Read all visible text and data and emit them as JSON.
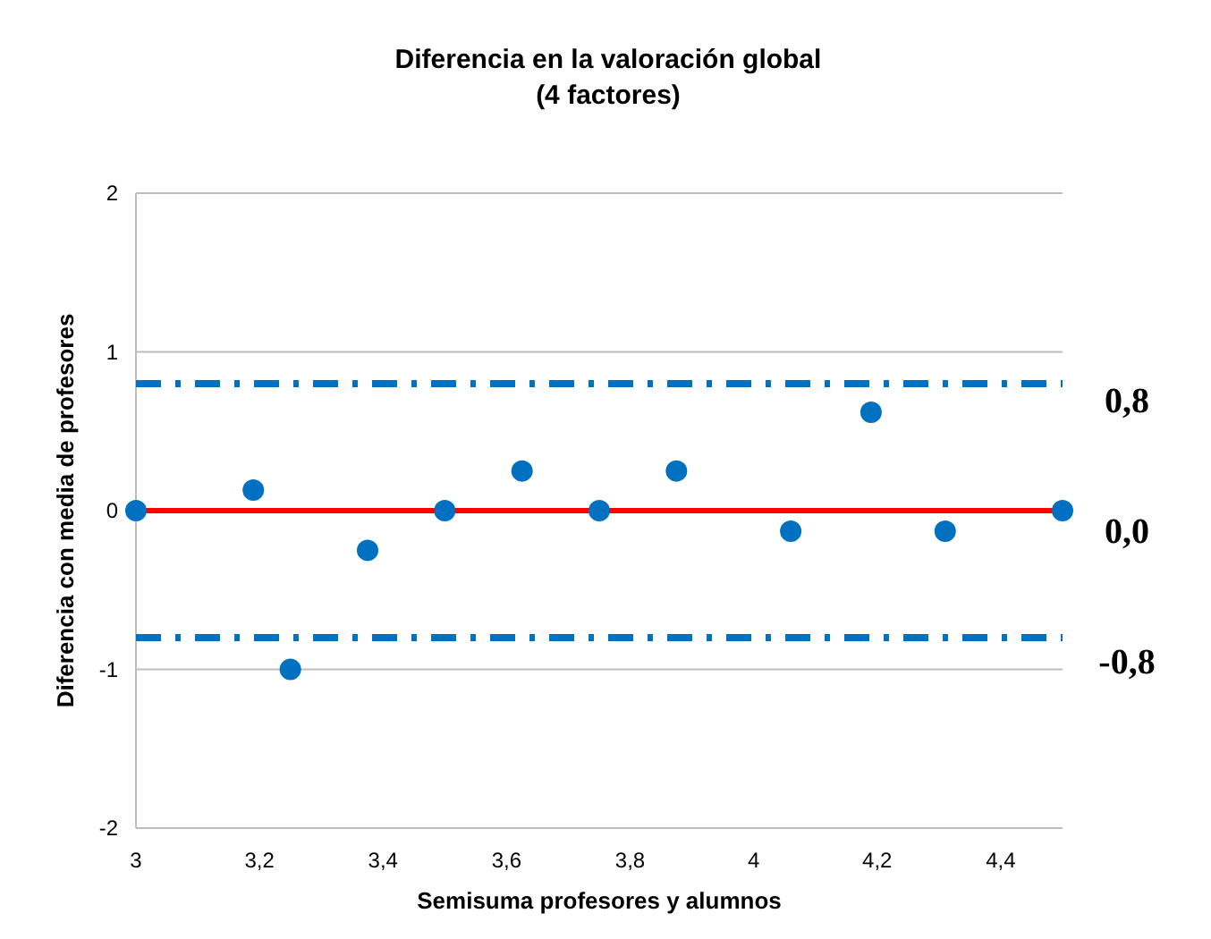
{
  "chart_data": {
    "type": "scatter",
    "title": "Diferencia en la valoración global\n(4 factores)",
    "xlabel": "Semisuma profesores y alumnos",
    "ylabel": "Diferencia con media de profesores",
    "x": [
      3,
      3.19,
      3.25,
      3.375,
      3.5,
      3.625,
      3.75,
      3.875,
      4.06,
      4.19,
      4.31,
      4.5
    ],
    "series": [
      {
        "color": "#0070c0",
        "values": [
          0,
          0.13,
          -1,
          -0.25,
          0,
          0.25,
          0,
          0.25,
          -0.13,
          0.62,
          -0.13,
          0
        ]
      }
    ],
    "xlim": [
      3,
      4.5
    ],
    "xticks": [
      {
        "value": 3,
        "label": "3"
      },
      {
        "value": 3.2,
        "label": "3,2"
      },
      {
        "value": 3.4,
        "label": "3,4"
      },
      {
        "value": 3.6,
        "label": "3,6"
      },
      {
        "value": 3.8,
        "label": "3,8"
      },
      {
        "value": 4,
        "label": "4"
      },
      {
        "value": 4.2,
        "label": "4,2"
      },
      {
        "value": 4.4,
        "label": "4,4"
      }
    ],
    "ylim": [
      -2,
      2
    ],
    "yticks": [
      -2,
      -1,
      0,
      1,
      2
    ],
    "grid": "y",
    "marker": "circle",
    "ref_lines": [
      {
        "axis": "y",
        "value": 0.8,
        "label": "0,8",
        "color": "#0070c0",
        "line_style": "dashed"
      },
      {
        "axis": "y",
        "value": 0,
        "label": "0,0",
        "color": "#ff0000",
        "line_style": "solid"
      },
      {
        "axis": "y",
        "value": -0.8,
        "label": "-0,8",
        "color": "#0070c0",
        "line_style": "dashed"
      }
    ]
  }
}
